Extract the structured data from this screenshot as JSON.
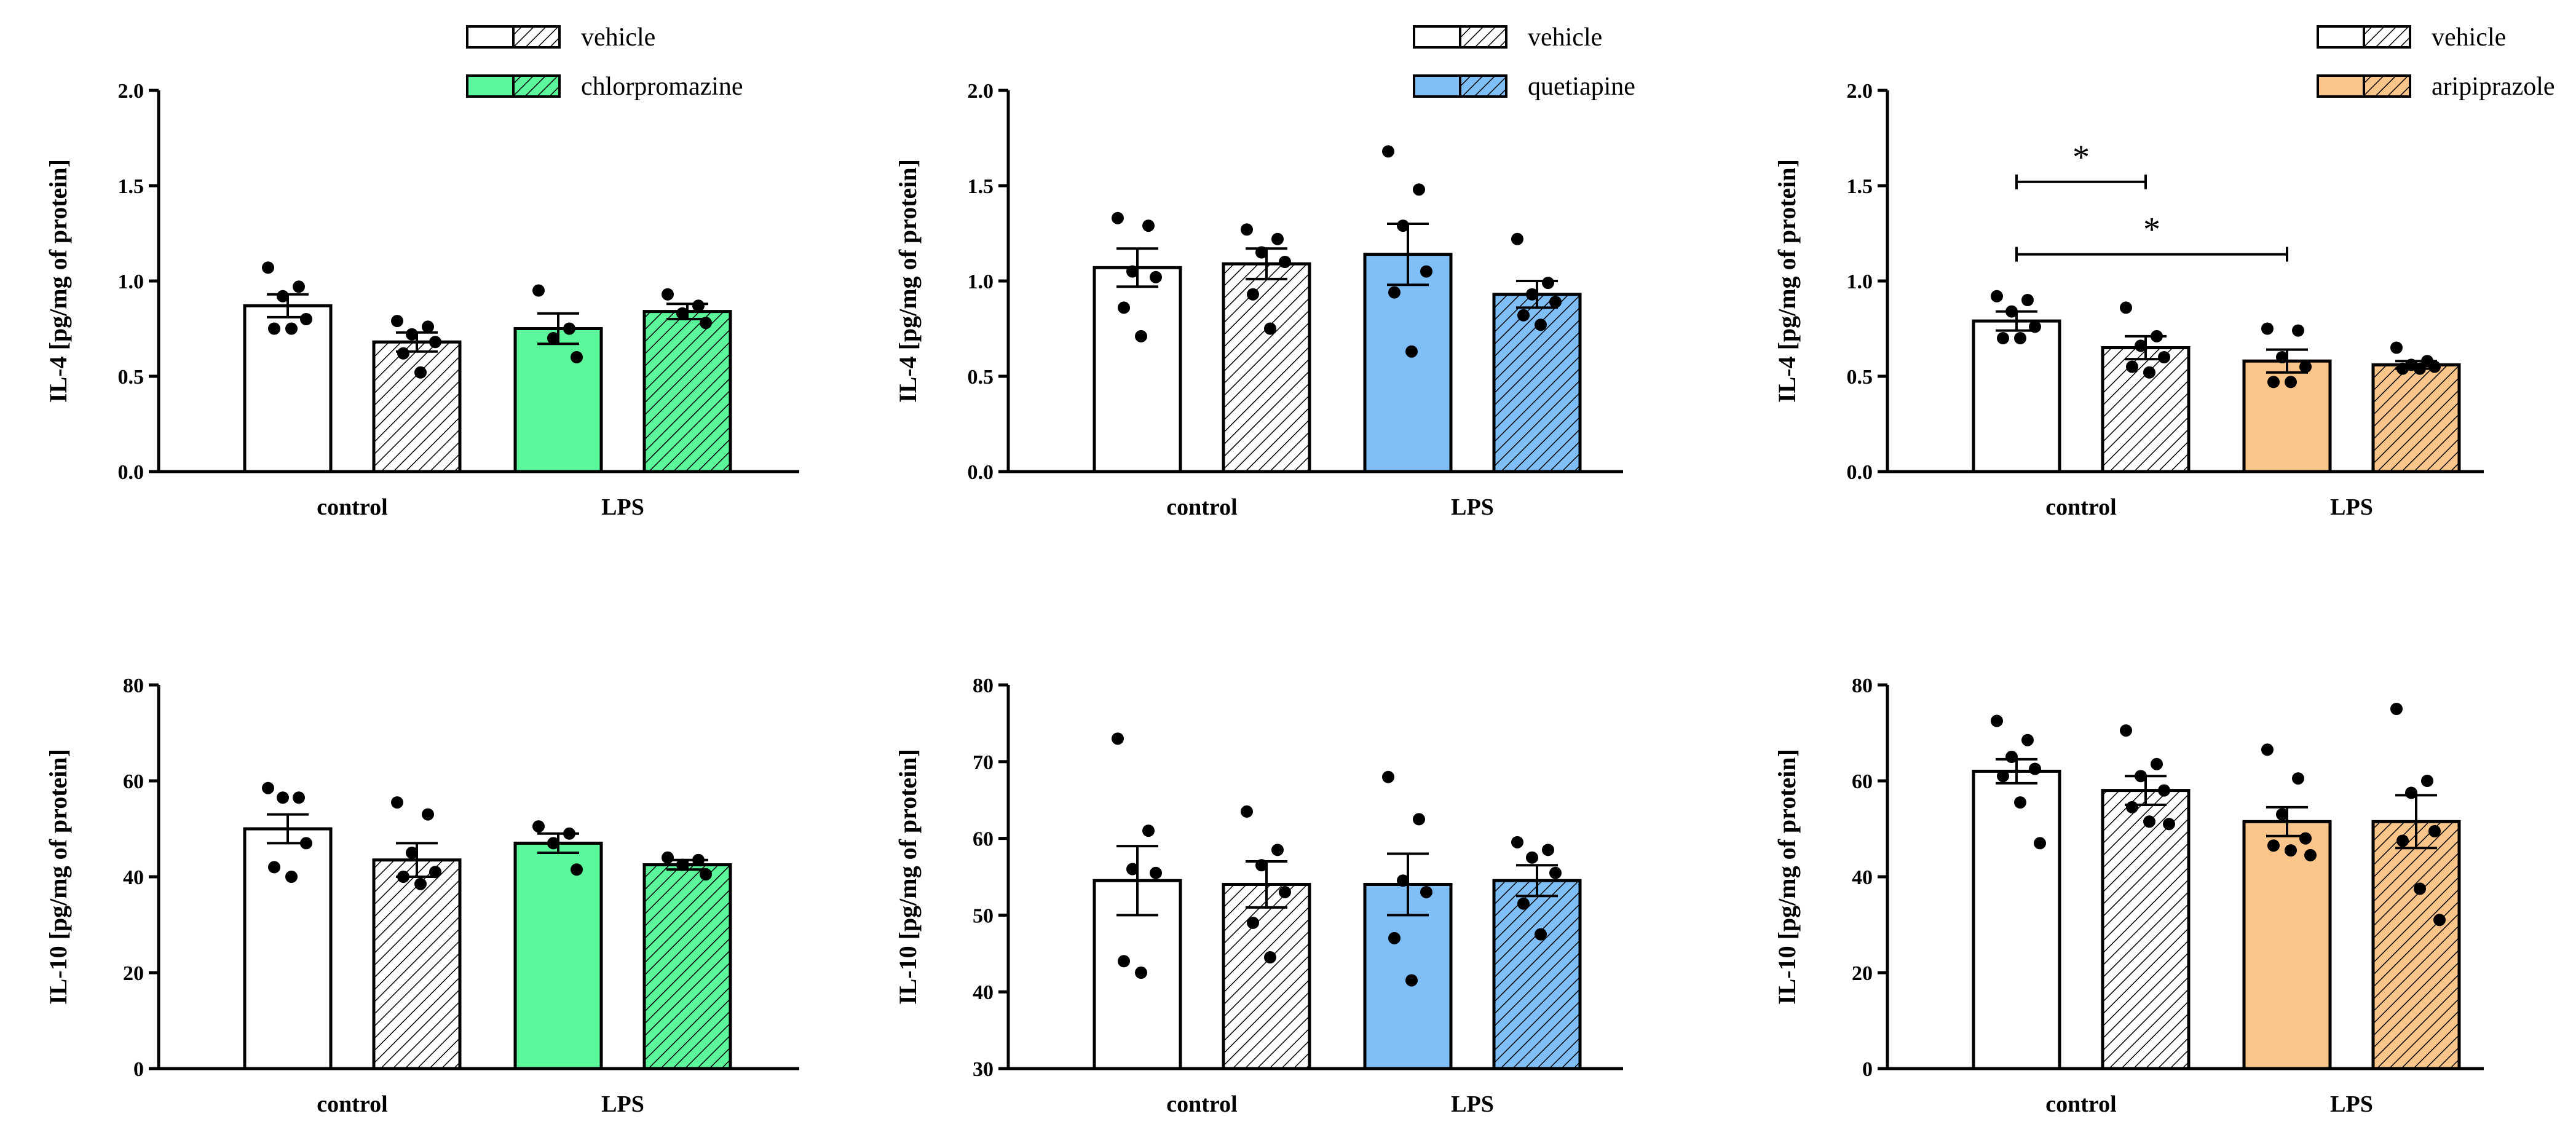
{
  "legend_colors": {
    "vehicle": "#ffffff",
    "chlorpromazine": "#5cf79a",
    "quetiapine": "#7fbef7",
    "aripiprazole": "#f9c58a"
  },
  "chart_data": [
    {
      "type": "bar",
      "ylabel": "IL-4 [pg/mg of protein]",
      "ylim": [
        0,
        2.0
      ],
      "yticks": [
        "0.0",
        "0.5",
        "1.0",
        "1.5",
        "2.0"
      ],
      "categories": [
        "control",
        "LPS"
      ],
      "legend": [
        {
          "label": "vehicle"
        },
        {
          "label": "chlorpromazine"
        }
      ],
      "legend_position": "top-right",
      "fill_color": "#5cf79a",
      "bars": [
        {
          "group": "control",
          "treatment": "vehicle",
          "mean": 0.87,
          "sem": 0.06,
          "points": [
            1.07,
            0.97,
            0.92,
            0.8,
            0.75,
            0.75
          ]
        },
        {
          "group": "control",
          "treatment": "drug",
          "mean": 0.68,
          "sem": 0.05,
          "points": [
            0.79,
            0.76,
            0.72,
            0.68,
            0.62,
            0.52
          ]
        },
        {
          "group": "LPS",
          "treatment": "vehicle",
          "mean": 0.75,
          "sem": 0.08,
          "points": [
            0.95,
            0.75,
            0.7,
            0.6
          ]
        },
        {
          "group": "LPS",
          "treatment": "drug",
          "mean": 0.84,
          "sem": 0.04,
          "points": [
            0.93,
            0.87,
            0.83,
            0.78
          ]
        }
      ],
      "significance": []
    },
    {
      "type": "bar",
      "ylabel": "IL-4 [pg/mg of protein]",
      "ylim": [
        0,
        2.0
      ],
      "yticks": [
        "0.0",
        "0.5",
        "1.0",
        "1.5",
        "2.0"
      ],
      "categories": [
        "control",
        "LPS"
      ],
      "legend": [
        {
          "label": "vehicle"
        },
        {
          "label": "quetiapine"
        }
      ],
      "legend_position": "top-right",
      "fill_color": "#7fbef7",
      "bars": [
        {
          "group": "control",
          "treatment": "vehicle",
          "mean": 1.07,
          "sem": 0.1,
          "points": [
            1.33,
            1.29,
            1.05,
            1.02,
            0.86,
            0.71
          ]
        },
        {
          "group": "control",
          "treatment": "drug",
          "mean": 1.09,
          "sem": 0.08,
          "points": [
            1.27,
            1.22,
            1.15,
            1.1,
            0.93,
            0.75
          ]
        },
        {
          "group": "LPS",
          "treatment": "vehicle",
          "mean": 1.14,
          "sem": 0.16,
          "points": [
            1.68,
            1.48,
            1.29,
            1.05,
            0.94,
            0.63
          ]
        },
        {
          "group": "LPS",
          "treatment": "drug",
          "mean": 0.93,
          "sem": 0.07,
          "points": [
            1.22,
            0.99,
            0.93,
            0.89,
            0.82,
            0.77
          ]
        }
      ],
      "significance": []
    },
    {
      "type": "bar",
      "ylabel": "IL-4 [pg/mg of protein]",
      "ylim": [
        0,
        2.0
      ],
      "yticks": [
        "0.0",
        "0.5",
        "1.0",
        "1.5",
        "2.0"
      ],
      "categories": [
        "control",
        "LPS"
      ],
      "legend": [
        {
          "label": "vehicle"
        },
        {
          "label": "aripiprazole"
        }
      ],
      "legend_position": "top-right",
      "fill_color": "#f9c58a",
      "bars": [
        {
          "group": "control",
          "treatment": "vehicle",
          "mean": 0.79,
          "sem": 0.05,
          "points": [
            0.92,
            0.9,
            0.84,
            0.76,
            0.7,
            0.7
          ]
        },
        {
          "group": "control",
          "treatment": "drug",
          "mean": 0.65,
          "sem": 0.06,
          "points": [
            0.86,
            0.71,
            0.66,
            0.6,
            0.55,
            0.52
          ]
        },
        {
          "group": "LPS",
          "treatment": "vehicle",
          "mean": 0.58,
          "sem": 0.06,
          "points": [
            0.75,
            0.74,
            0.6,
            0.55,
            0.47,
            0.47
          ]
        },
        {
          "group": "LPS",
          "treatment": "drug",
          "mean": 0.56,
          "sem": 0.02,
          "points": [
            0.65,
            0.58,
            0.56,
            0.55,
            0.54,
            0.54
          ]
        }
      ],
      "significance": [
        {
          "from": 0,
          "to": 1,
          "y": 1.52,
          "label": "*"
        },
        {
          "from": 0,
          "to": 2,
          "y": 1.14,
          "label": "*"
        }
      ]
    },
    {
      "type": "bar",
      "ylabel": "IL-10 [pg/mg of protein]",
      "ylim": [
        0,
        80
      ],
      "yticks": [
        "0",
        "20",
        "40",
        "60",
        "80"
      ],
      "categories": [
        "control",
        "LPS"
      ],
      "legend": [],
      "fill_color": "#5cf79a",
      "bars": [
        {
          "group": "control",
          "treatment": "vehicle",
          "mean": 50.0,
          "sem": 3.0,
          "points": [
            58.5,
            56.5,
            56.5,
            47.0,
            42.0,
            40.0
          ]
        },
        {
          "group": "control",
          "treatment": "drug",
          "mean": 43.5,
          "sem": 3.5,
          "points": [
            55.5,
            53.0,
            45.0,
            41.0,
            40.0,
            38.5
          ]
        },
        {
          "group": "LPS",
          "treatment": "vehicle",
          "mean": 47.0,
          "sem": 2.0,
          "points": [
            50.5,
            49.0,
            47.0,
            41.5
          ]
        },
        {
          "group": "LPS",
          "treatment": "drug",
          "mean": 42.5,
          "sem": 1.0,
          "points": [
            44.0,
            43.5,
            42.5,
            40.5
          ]
        }
      ],
      "significance": []
    },
    {
      "type": "bar",
      "ylabel": "IL-10 [pg/mg of protein]",
      "ylim": [
        30,
        80
      ],
      "yticks": [
        "30",
        "40",
        "50",
        "60",
        "70",
        "80"
      ],
      "categories": [
        "control",
        "LPS"
      ],
      "legend": [],
      "fill_color": "#7fbef7",
      "bars": [
        {
          "group": "control",
          "treatment": "vehicle",
          "mean": 54.5,
          "sem": 4.5,
          "points": [
            73.0,
            61.0,
            56.0,
            55.5,
            44.0,
            42.5
          ]
        },
        {
          "group": "control",
          "treatment": "drug",
          "mean": 54.0,
          "sem": 3.0,
          "points": [
            63.5,
            58.5,
            56.5,
            53.0,
            49.0,
            44.5
          ]
        },
        {
          "group": "LPS",
          "treatment": "vehicle",
          "mean": 54.0,
          "sem": 4.0,
          "points": [
            68.0,
            62.5,
            54.5,
            53.0,
            47.0,
            41.5
          ]
        },
        {
          "group": "LPS",
          "treatment": "drug",
          "mean": 54.5,
          "sem": 2.0,
          "points": [
            59.5,
            58.5,
            57.5,
            55.5,
            51.5,
            47.5
          ]
        }
      ],
      "significance": []
    },
    {
      "type": "bar",
      "ylabel": "IL-10 [pg/mg of protein]",
      "ylim": [
        0,
        80
      ],
      "yticks": [
        "0",
        "20",
        "40",
        "60",
        "80"
      ],
      "categories": [
        "control",
        "LPS"
      ],
      "legend": [],
      "fill_color": "#f9c58a",
      "bars": [
        {
          "group": "control",
          "treatment": "vehicle",
          "mean": 62.0,
          "sem": 2.5,
          "points": [
            72.5,
            68.5,
            65.0,
            62.5,
            61.0,
            55.5,
            47.0
          ]
        },
        {
          "group": "control",
          "treatment": "drug",
          "mean": 58.0,
          "sem": 3.0,
          "points": [
            70.5,
            63.5,
            61.0,
            58.0,
            54.5,
            51.5,
            51.0
          ]
        },
        {
          "group": "LPS",
          "treatment": "vehicle",
          "mean": 51.5,
          "sem": 3.0,
          "points": [
            66.5,
            60.5,
            53.0,
            48.0,
            46.5,
            45.5,
            44.5
          ]
        },
        {
          "group": "LPS",
          "treatment": "drug",
          "mean": 51.5,
          "sem": 5.5,
          "points": [
            75.0,
            60.0,
            57.5,
            49.5,
            47.5,
            37.5,
            31.0
          ]
        }
      ],
      "significance": []
    }
  ]
}
